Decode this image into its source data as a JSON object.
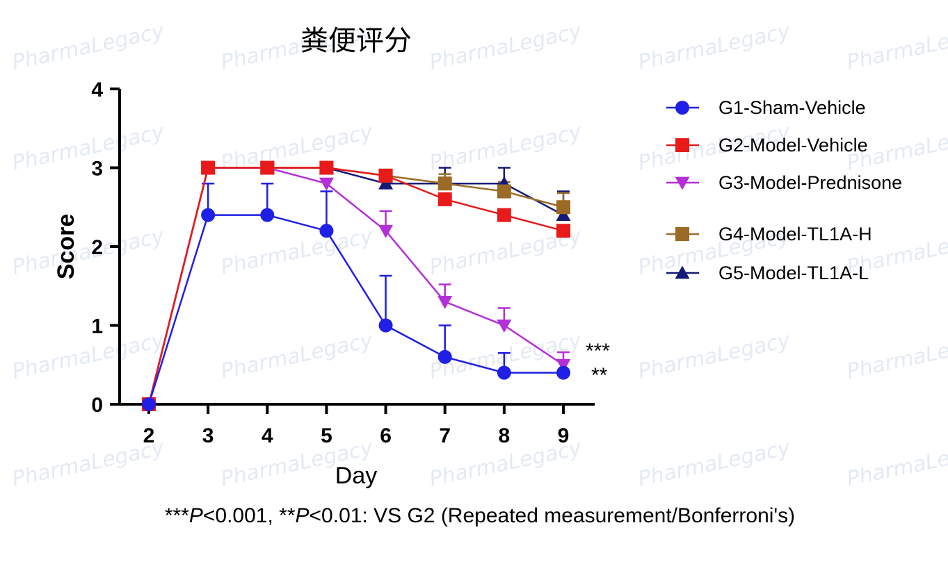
{
  "chart_data": {
    "type": "line",
    "title": "粪便评分",
    "xlabel": "Day",
    "ylabel": "Score",
    "x": [
      2,
      3,
      4,
      5,
      6,
      7,
      8,
      9
    ],
    "xlim": [
      2,
      9
    ],
    "ylim": [
      0,
      4
    ],
    "yticks": [
      0,
      1,
      2,
      3,
      4
    ],
    "grid": false,
    "legend_position": "right",
    "series": [
      {
        "name": "G1-Sham-Vehicle",
        "color": "#1f1fe6",
        "marker": "circle",
        "values": [
          0,
          2.4,
          2.4,
          2.2,
          1.0,
          0.6,
          0.4,
          0.4
        ],
        "error": [
          0,
          0.4,
          0.4,
          0.5,
          0.63,
          0.4,
          0.25,
          0
        ]
      },
      {
        "name": "G2-Model-Vehicle",
        "color": "#e81a1a",
        "marker": "square",
        "values": [
          0,
          3.0,
          3.0,
          3.0,
          2.9,
          2.6,
          2.4,
          2.2
        ],
        "error": [
          0,
          0,
          0,
          0,
          0,
          0,
          0,
          0
        ]
      },
      {
        "name": "G3-Model-Prednisone",
        "color": "#b42fd8",
        "marker": "triangle-down",
        "values": [
          0,
          3.0,
          3.0,
          2.8,
          2.2,
          1.3,
          1.0,
          0.5
        ],
        "error": [
          0,
          0,
          0,
          0,
          0.25,
          0.22,
          0.22,
          0.16
        ]
      },
      {
        "name": "G4-Model-TL1A-H",
        "color": "#9b6b26",
        "marker": "square",
        "values": [
          0,
          3.0,
          3.0,
          3.0,
          2.9,
          2.8,
          2.7,
          2.5
        ],
        "error": [
          0,
          0,
          0,
          0,
          0,
          0.12,
          0.12,
          0.18
        ]
      },
      {
        "name": "G5-Model-TL1A-L",
        "color": "#151a78",
        "marker": "triangle-up",
        "values": [
          0,
          3.0,
          3.0,
          3.0,
          2.8,
          2.8,
          2.8,
          2.4
        ],
        "error": [
          0,
          0,
          0,
          0,
          0,
          0.2,
          0.2,
          0.3
        ]
      }
    ],
    "annotations": [
      {
        "text": "***",
        "series": "G3-Model-Prednisone",
        "x": 9
      },
      {
        "text": "**",
        "series": "G1-Sham-Vehicle",
        "x": 9
      }
    ]
  },
  "footnote": {
    "part1": "***",
    "p1": "P",
    "part2": "<0.001,  **",
    "p2": "P",
    "part3": "<0.01: VS G2 (Repeated measurement/Bonferroni's)"
  },
  "watermark": {
    "text": "PharmaLegacy"
  }
}
